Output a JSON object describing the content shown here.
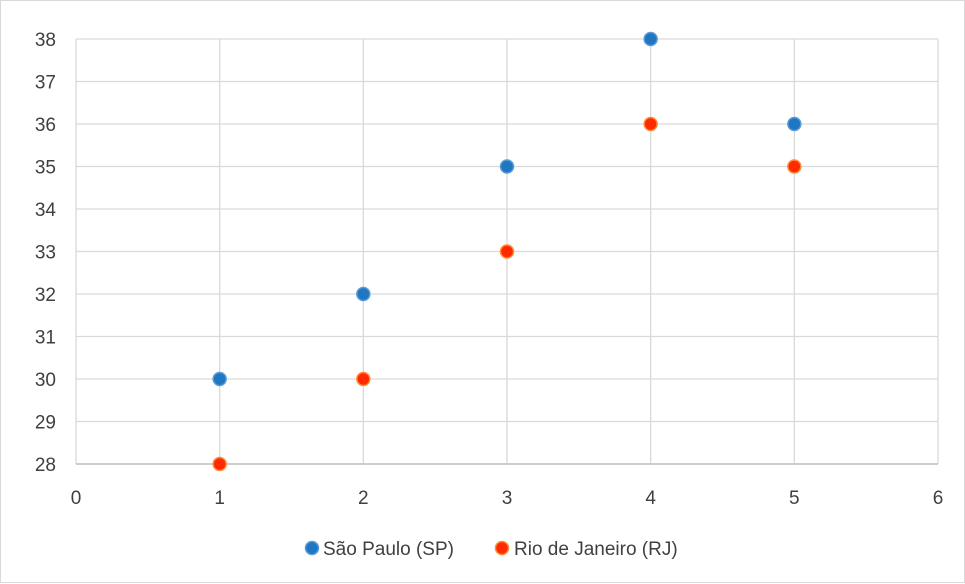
{
  "chart_data": {
    "type": "scatter",
    "title": "",
    "xlabel": "",
    "ylabel": "",
    "xlim": [
      0,
      6
    ],
    "ylim": [
      28,
      38
    ],
    "x_ticks": [
      0,
      1,
      2,
      3,
      4,
      5,
      6
    ],
    "y_ticks": [
      28,
      29,
      30,
      31,
      32,
      33,
      34,
      35,
      36,
      37,
      38
    ],
    "grid": "on",
    "legend_position": "bottom",
    "series": [
      {
        "name": "São Paulo (SP)",
        "color": "#1f77c4",
        "x": [
          1,
          2,
          3,
          4,
          5
        ],
        "y": [
          30,
          32,
          35,
          38,
          36
        ]
      },
      {
        "name": "Rio de Janeiro (RJ)",
        "color": "#ff2a00",
        "x": [
          1,
          2,
          3,
          4,
          5
        ],
        "y": [
          28,
          30,
          33,
          36,
          35
        ]
      }
    ]
  }
}
